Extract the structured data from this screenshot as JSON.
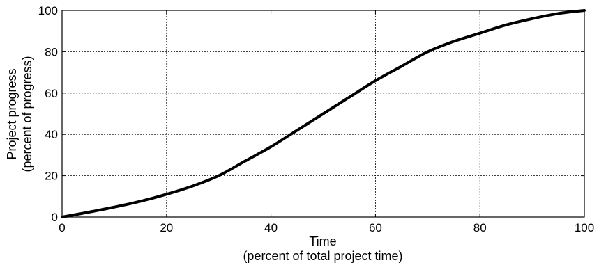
{
  "chart_data": {
    "type": "line",
    "title": "",
    "xlabel": [
      "Time",
      "(percent of total project time)"
    ],
    "ylabel": [
      "Project progress",
      "(percent of progress)"
    ],
    "xlim": [
      0,
      100
    ],
    "ylim": [
      0,
      100
    ],
    "grid": true,
    "x_ticks": [
      "0",
      "20",
      "40",
      "60",
      "80",
      "100"
    ],
    "y_ticks": [
      "0",
      "20",
      "40",
      "60",
      "80",
      "100"
    ],
    "series": [
      {
        "x": [
          0,
          5,
          10,
          15,
          20,
          25,
          30,
          35,
          40,
          45,
          50,
          55,
          60,
          65,
          70,
          75,
          80,
          85,
          90,
          95,
          100
        ],
        "y": [
          0,
          2.3,
          4.8,
          7.6,
          11,
          15,
          20,
          27,
          34,
          42,
          50,
          58,
          66,
          73,
          80,
          85,
          89,
          93,
          96,
          98.5,
          100
        ],
        "color": "#000000"
      }
    ]
  }
}
